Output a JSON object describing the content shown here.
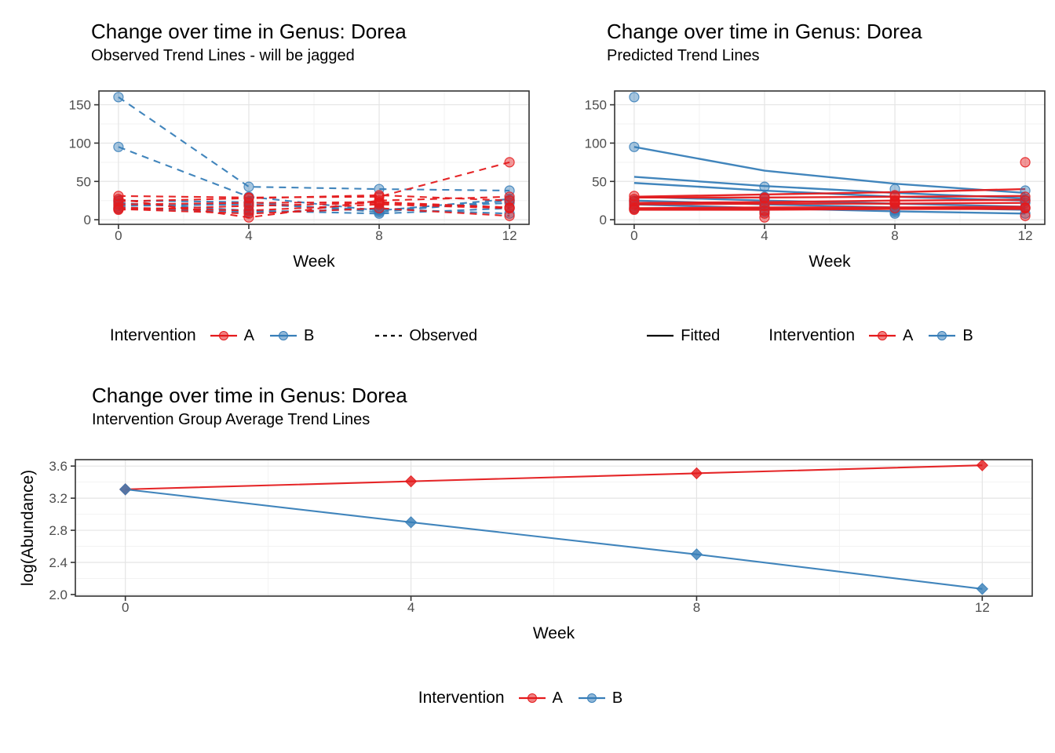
{
  "page": {
    "background": "#ffffff"
  },
  "colors": {
    "intervention_a": "#E41A1C",
    "intervention_b": "#377EB8",
    "linetype_key": "#000000",
    "grid_major": "#E4E4E4",
    "grid_minor": "#F2F2F2",
    "panel_border": "#333333",
    "tick_mark": "#333333",
    "tick_label": "#4D4D4D",
    "axis_title": "#000000"
  },
  "chart_data": [
    {
      "id": "observed",
      "type": "line",
      "title": "Change over time in Genus: Dorea",
      "subtitle": "Observed Trend Lines - will be jagged",
      "xlabel": "Week",
      "ylabel": "",
      "x": [
        0,
        4,
        8,
        12
      ],
      "xticks": [
        0,
        4,
        8,
        12
      ],
      "xticklabels": [
        "0",
        "4",
        "8",
        "12"
      ],
      "yticks": [
        0,
        50,
        100,
        150
      ],
      "yticklabels": [
        "0",
        "50",
        "100",
        "150"
      ],
      "xlim": [
        -0.6,
        12.6
      ],
      "ylim": [
        -6,
        168
      ],
      "grid": true,
      "line_style": "dashed",
      "show_points": true,
      "marker": "circle",
      "series": [
        {
          "name": "subject-B1",
          "group": "B",
          "values": [
            160,
            43,
            40,
            38
          ]
        },
        {
          "name": "subject-B2",
          "group": "B",
          "values": [
            95,
            30,
            12,
            27
          ]
        },
        {
          "name": "subject-B3",
          "group": "B",
          "values": [
            25,
            23,
            10,
            25
          ]
        },
        {
          "name": "subject-B4",
          "group": "B",
          "values": [
            22,
            12,
            8,
            15
          ]
        },
        {
          "name": "subject-B5",
          "group": "B",
          "values": [
            18,
            20,
            13,
            22
          ]
        },
        {
          "name": "subject-B6",
          "group": "B",
          "values": [
            15,
            10,
            14,
            8
          ]
        },
        {
          "name": "subject-A1",
          "group": "A",
          "values": [
            31,
            29,
            30,
            75
          ]
        },
        {
          "name": "subject-A2",
          "group": "A",
          "values": [
            27,
            3,
            25,
            30
          ]
        },
        {
          "name": "subject-A3",
          "group": "A",
          "values": [
            24,
            28,
            32,
            25
          ]
        },
        {
          "name": "subject-A4",
          "group": "A",
          "values": [
            20,
            22,
            23,
            16
          ]
        },
        {
          "name": "subject-A5",
          "group": "A",
          "values": [
            16,
            12,
            20,
            15
          ]
        },
        {
          "name": "subject-A6",
          "group": "A",
          "values": [
            14,
            8,
            15,
            5
          ]
        },
        {
          "name": "subject-A7",
          "group": "A",
          "values": [
            13,
            18,
            22,
            16
          ]
        }
      ],
      "legend": {
        "title": "Intervention",
        "items": [
          {
            "label": "A"
          },
          {
            "label": "B"
          }
        ],
        "linetype": {
          "label": "Observed",
          "style": "dashed"
        }
      }
    },
    {
      "id": "predicted",
      "type": "line",
      "title": "Change over time in Genus: Dorea",
      "subtitle": "Predicted Trend Lines",
      "xlabel": "Week",
      "ylabel": "",
      "x": [
        0,
        4,
        8,
        12
      ],
      "xticks": [
        0,
        4,
        8,
        12
      ],
      "xticklabels": [
        "0",
        "4",
        "8",
        "12"
      ],
      "yticks": [
        0,
        50,
        100,
        150
      ],
      "yticklabels": [
        "0",
        "50",
        "100",
        "150"
      ],
      "xlim": [
        -0.6,
        12.6
      ],
      "ylim": [
        -6,
        168
      ],
      "grid": true,
      "line_style": "none",
      "show_points": true,
      "marker": "circle",
      "series": [
        {
          "name": "subject-B1",
          "group": "B",
          "values": [
            160,
            43,
            40,
            38
          ]
        },
        {
          "name": "subject-B2",
          "group": "B",
          "values": [
            95,
            30,
            12,
            27
          ]
        },
        {
          "name": "subject-B3",
          "group": "B",
          "values": [
            25,
            23,
            10,
            25
          ]
        },
        {
          "name": "subject-B4",
          "group": "B",
          "values": [
            22,
            12,
            8,
            15
          ]
        },
        {
          "name": "subject-B5",
          "group": "B",
          "values": [
            18,
            20,
            13,
            22
          ]
        },
        {
          "name": "subject-B6",
          "group": "B",
          "values": [
            15,
            10,
            14,
            8
          ]
        },
        {
          "name": "subject-A1",
          "group": "A",
          "values": [
            31,
            29,
            30,
            75
          ]
        },
        {
          "name": "subject-A2",
          "group": "A",
          "values": [
            27,
            3,
            25,
            30
          ]
        },
        {
          "name": "subject-A3",
          "group": "A",
          "values": [
            24,
            28,
            32,
            25
          ]
        },
        {
          "name": "subject-A4",
          "group": "A",
          "values": [
            20,
            22,
            23,
            16
          ]
        },
        {
          "name": "subject-A5",
          "group": "A",
          "values": [
            16,
            12,
            20,
            15
          ]
        },
        {
          "name": "subject-A6",
          "group": "A",
          "values": [
            14,
            8,
            15,
            5
          ]
        },
        {
          "name": "subject-A7",
          "group": "A",
          "values": [
            13,
            18,
            22,
            16
          ]
        }
      ],
      "fitted": [
        {
          "name": "fit-B1",
          "group": "B",
          "values": [
            95,
            64,
            47,
            35
          ]
        },
        {
          "name": "fit-B2",
          "group": "B",
          "values": [
            56,
            44,
            35,
            28
          ]
        },
        {
          "name": "fit-B3",
          "group": "B",
          "values": [
            48,
            38,
            30,
            25
          ]
        },
        {
          "name": "fit-B4",
          "group": "B",
          "values": [
            30,
            25,
            21,
            17
          ]
        },
        {
          "name": "fit-B5",
          "group": "B",
          "values": [
            25,
            20,
            16,
            13
          ]
        },
        {
          "name": "fit-B6",
          "group": "B",
          "values": [
            20,
            15,
            11,
            8
          ]
        },
        {
          "name": "fit-A1",
          "group": "A",
          "values": [
            30,
            33,
            36,
            40
          ]
        },
        {
          "name": "fit-A2",
          "group": "A",
          "values": [
            29,
            29,
            30,
            31
          ]
        },
        {
          "name": "fit-A3",
          "group": "A",
          "values": [
            22,
            23,
            25,
            26
          ]
        },
        {
          "name": "fit-A4",
          "group": "A",
          "values": [
            20,
            21,
            21,
            22
          ]
        },
        {
          "name": "fit-A5",
          "group": "A",
          "values": [
            15,
            16,
            16,
            17
          ]
        },
        {
          "name": "fit-A6",
          "group": "A",
          "values": [
            14,
            14,
            15,
            15
          ]
        },
        {
          "name": "fit-A7",
          "group": "A",
          "values": [
            13,
            13,
            14,
            14
          ]
        }
      ],
      "legend": {
        "title": "Intervention",
        "items": [
          {
            "label": "A"
          },
          {
            "label": "B"
          }
        ],
        "linetype": {
          "label": "Fitted",
          "style": "solid"
        }
      }
    },
    {
      "id": "group-average",
      "type": "line",
      "title": "Change over time in Genus: Dorea",
      "subtitle": "Intervention Group Average Trend Lines",
      "xlabel": "Week",
      "ylabel": "log(Abundance)",
      "x": [
        0,
        4,
        8,
        12
      ],
      "xticks": [
        0,
        4,
        8,
        12
      ],
      "xticklabels": [
        "0",
        "4",
        "8",
        "12"
      ],
      "yticks": [
        2.0,
        2.4,
        2.8,
        3.2,
        3.6
      ],
      "yticklabels": [
        "2.0",
        "2.4",
        "2.8",
        "3.2",
        "3.6"
      ],
      "xlim": [
        -0.7,
        12.7
      ],
      "ylim": [
        1.98,
        3.68
      ],
      "grid": true,
      "line_style": "solid",
      "show_points": true,
      "marker": "diamond",
      "series": [
        {
          "name": "group-A-mean",
          "group": "A",
          "values": [
            3.31,
            3.41,
            3.51,
            3.61
          ]
        },
        {
          "name": "group-B-mean",
          "group": "B",
          "values": [
            3.31,
            2.9,
            2.5,
            2.07
          ]
        }
      ],
      "legend": {
        "title": "Intervention",
        "items": [
          {
            "label": "A"
          },
          {
            "label": "B"
          }
        ]
      }
    }
  ]
}
